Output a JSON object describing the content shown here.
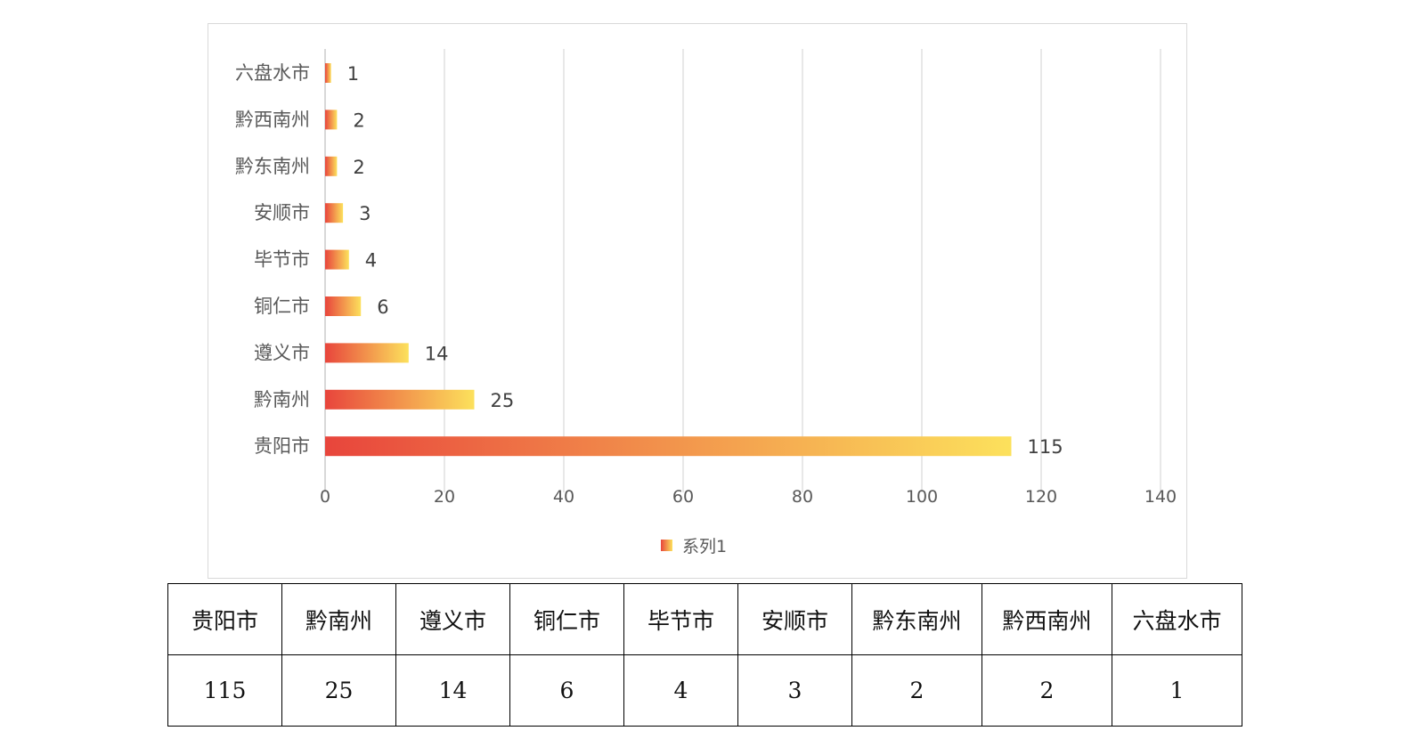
{
  "chart_data": {
    "type": "bar",
    "orientation": "horizontal",
    "categories": [
      "六盘水市",
      "黔西南州",
      "黔东南州",
      "安顺市",
      "毕节市",
      "铜仁市",
      "遵义市",
      "黔南州",
      "贵阳市"
    ],
    "series": [
      {
        "name": "系列1",
        "values": [
          1,
          2,
          2,
          3,
          4,
          6,
          14,
          25,
          115
        ]
      }
    ],
    "xlim": [
      0,
      140
    ],
    "x_ticks": [
      0,
      20,
      40,
      60,
      80,
      100,
      120,
      140
    ],
    "grid": "vertical",
    "legend": "bottom",
    "colors": {
      "gradient_start": "#e8453c",
      "gradient_end": "#fce15c"
    },
    "data_labels": true
  },
  "table": {
    "headers": [
      "贵阳市",
      "黔南州",
      "遵义市",
      "铜仁市",
      "毕节市",
      "安顺市",
      "黔东南州",
      "黔西南州",
      "六盘水市"
    ],
    "values": [
      "115",
      "25",
      "14",
      "6",
      "4",
      "3",
      "2",
      "2",
      "1"
    ]
  }
}
